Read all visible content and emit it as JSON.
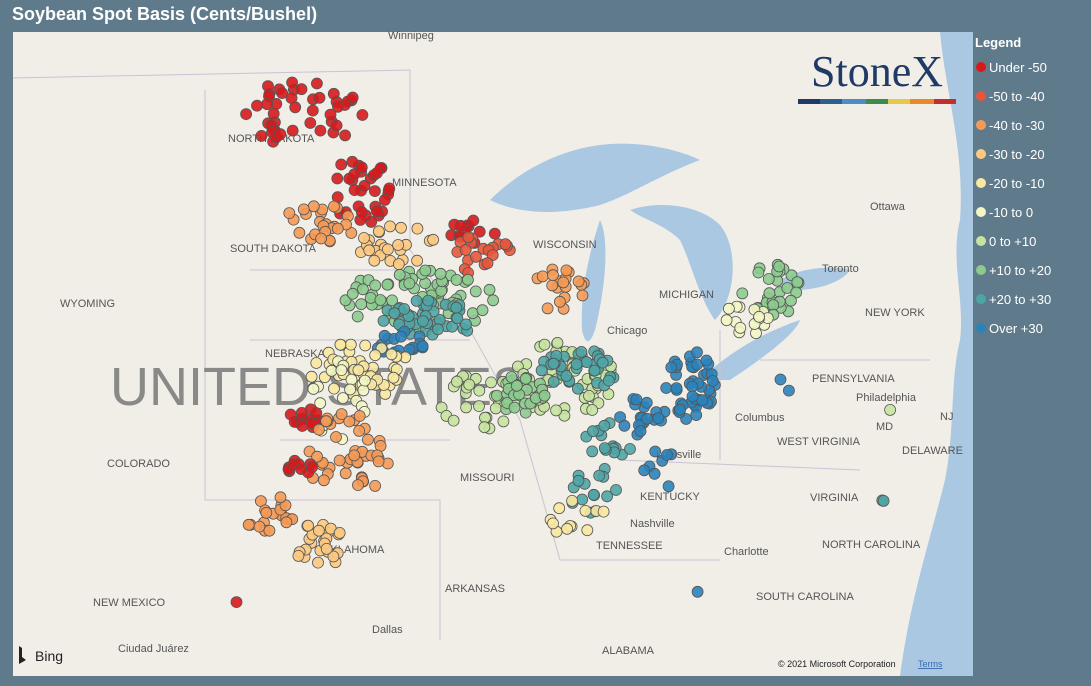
{
  "header": {
    "title": "Soybean Spot Basis (Cents/Bushel)"
  },
  "legend": {
    "title": "Legend",
    "items": [
      {
        "label": "Under -50",
        "color": "#d7191c"
      },
      {
        "label": "-50 to -40",
        "color": "#e8553a"
      },
      {
        "label": "-40 to -30",
        "color": "#f59a55"
      },
      {
        "label": "-30 to -20",
        "color": "#fdc980"
      },
      {
        "label": "-20 to -10",
        "color": "#f8e8a0"
      },
      {
        "label": "-10 to 0",
        "color": "#f3f6c4"
      },
      {
        "label": "0 to +10",
        "color": "#c6e3a0"
      },
      {
        "label": "+10 to +20",
        "color": "#8ccb8e"
      },
      {
        "label": "+20 to +30",
        "color": "#4fa5a5"
      },
      {
        "label": "Over +30",
        "color": "#2b83ba"
      }
    ]
  },
  "logo": "StoneX",
  "map_labels": [
    "Winnipeg",
    "NORTH DAKOTA",
    "MINNESOTA",
    "SOUTH DAKOTA",
    "WISCONSIN",
    "WYOMING",
    "NEBRASKA",
    "UNITED STATES",
    "COLORADO",
    "MISSOURI",
    "Chicago",
    "MICHIGAN",
    "Ottawa",
    "Toronto",
    "NEW YORK",
    "PENNSYLVANIA",
    "Philadelphia",
    "Columbus",
    "Louisville",
    "WEST VIRGINIA",
    "KENTUCKY",
    "Nashville",
    "TENNESSEE",
    "VIRGINIA",
    "NORTH CAROLINA",
    "Charlotte",
    "SOUTH CAROLINA",
    "OKLAHOMA",
    "ARKANSAS",
    "NEW MEXICO",
    "Dallas",
    "ALABAMA",
    "Ciudad Juárez",
    "MD",
    "DELAWARE",
    "NJ"
  ],
  "attribution": {
    "provider": "Bing",
    "copyright": "© 2021 Microsoft Corporation",
    "terms": "Terms"
  }
}
